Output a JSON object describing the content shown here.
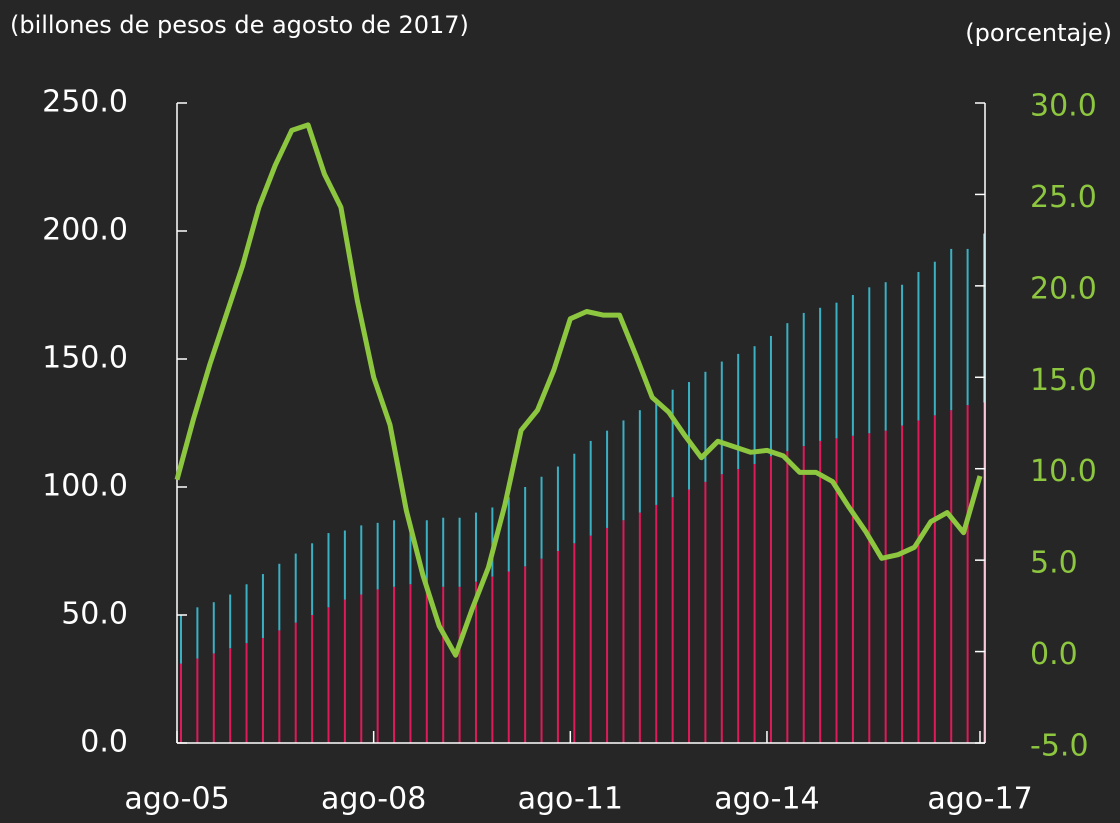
{
  "chart_data": {
    "type": "bar-line",
    "y_label": "(billones de pesos de agosto de 2017)",
    "y2_label": "(porcentaje)",
    "categories": [
      "ago-05",
      null,
      null,
      null,
      null,
      null,
      null,
      null,
      null,
      null,
      null,
      null,
      "ago-08",
      null,
      null,
      null,
      null,
      null,
      null,
      null,
      null,
      null,
      null,
      null,
      "ago-11",
      null,
      null,
      null,
      null,
      null,
      null,
      null,
      null,
      null,
      null,
      null,
      "ago-14",
      null,
      null,
      null,
      null,
      null,
      null,
      null,
      null,
      null,
      null,
      null,
      null,
      "ago-17"
    ],
    "series": [
      {
        "type": "bar",
        "color": "#e0195a",
        "values": [
          31,
          33,
          35,
          37,
          39,
          41,
          44,
          47,
          50,
          53,
          56,
          58,
          60,
          61,
          62,
          62,
          61,
          61,
          63,
          65,
          67,
          69,
          72,
          75,
          78,
          81,
          84,
          87,
          90,
          93,
          96,
          99,
          102,
          105,
          107,
          109,
          112,
          114,
          116,
          118,
          119,
          120,
          121,
          122,
          124,
          126,
          128,
          130,
          132,
          133
        ]
      },
      {
        "type": "bar",
        "color": "#3ab0c3",
        "values": [
          19,
          20,
          20,
          21,
          23,
          25,
          26,
          27,
          28,
          29,
          27,
          27,
          26,
          26,
          25,
          25,
          27,
          27,
          27,
          27,
          29,
          31,
          32,
          33,
          35,
          37,
          38,
          39,
          40,
          41,
          42,
          42,
          43,
          44,
          45,
          46,
          47,
          50,
          52,
          52,
          53,
          55,
          57,
          58,
          55,
          58,
          60,
          63,
          61,
          66
        ]
      },
      {
        "type": "line",
        "axis": "y2",
        "color": "#8dc63f",
        "values": [
          9.4,
          12.7,
          15.7,
          18.4,
          21.1,
          24.3,
          26.6,
          28.5,
          28.8,
          26.1,
          24.3,
          19.2,
          15.0,
          12.4,
          7.7,
          4.2,
          1.4,
          -0.2,
          2.3,
          4.6,
          8.0,
          12.1,
          13.2,
          15.4,
          18.2,
          18.6,
          18.4,
          18.4,
          16.2,
          13.9,
          13.1,
          11.8,
          10.6,
          11.5,
          11.2,
          10.9,
          11.0,
          10.7,
          9.8,
          9.8,
          9.3,
          7.9,
          6.6,
          5.1,
          5.3,
          5.7,
          7.1,
          7.6,
          6.5,
          9.6
        ]
      }
    ],
    "ylim": [
      0,
      250
    ],
    "yticks": [
      {
        "value": 0,
        "label": "0.0"
      },
      {
        "value": 50,
        "label": "50.0"
      },
      {
        "value": 100,
        "label": "100.0"
      },
      {
        "value": 150,
        "label": "150.0"
      },
      {
        "value": 200,
        "label": "200.0"
      },
      {
        "value": 250,
        "label": "250.0"
      }
    ],
    "y2lim": [
      -5,
      30
    ],
    "y2ticks": [
      {
        "value": -5,
        "label": "-5.0"
      },
      {
        "value": 0,
        "label": "0.0"
      },
      {
        "value": 5,
        "label": "5.0"
      },
      {
        "value": 10,
        "label": "10.0"
      },
      {
        "value": 15,
        "label": "15.0"
      },
      {
        "value": 20,
        "label": "20.0"
      },
      {
        "value": 25,
        "label": "25.0"
      },
      {
        "value": 30,
        "label": "30.0"
      }
    ],
    "y2_color": "#8dc63f"
  }
}
